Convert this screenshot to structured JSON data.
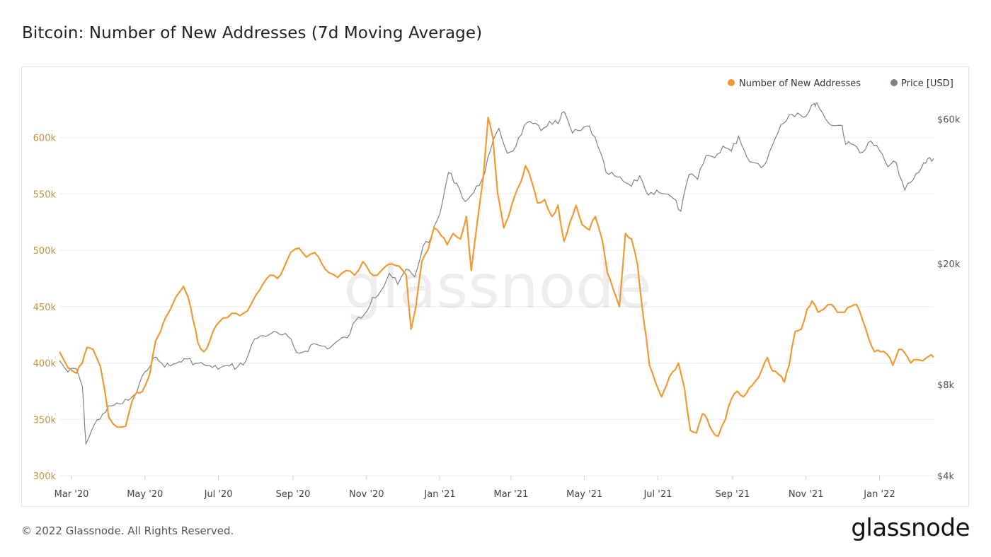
{
  "title": "Bitcoin: Number of New Addresses (7d Moving Average)",
  "footer": {
    "copyright": "© 2022 Glassnode. All Rights Reserved.",
    "logo": "glassnode"
  },
  "watermark": "glassnode",
  "colors": {
    "addresses": "#f09a36",
    "price": "#868079",
    "left_axis": "#c8913e",
    "grid": "#ececec"
  },
  "chart_data": {
    "type": "line",
    "title": "Bitcoin: Number of New Addresses (7d Moving Average)",
    "x_range": [
      "2020-02-20",
      "2022-02-15"
    ],
    "x_ticks": [
      {
        "date": "2020-03-01",
        "label": "Mar '20"
      },
      {
        "date": "2020-05-01",
        "label": "May '20"
      },
      {
        "date": "2020-07-01",
        "label": "Jul '20"
      },
      {
        "date": "2020-09-01",
        "label": "Sep '20"
      },
      {
        "date": "2020-11-01",
        "label": "Nov '20"
      },
      {
        "date": "2021-01-01",
        "label": "Jan '21"
      },
      {
        "date": "2021-03-01",
        "label": "Mar '21"
      },
      {
        "date": "2021-05-01",
        "label": "May '21"
      },
      {
        "date": "2021-07-01",
        "label": "Jul '21"
      },
      {
        "date": "2021-09-01",
        "label": "Sep '21"
      },
      {
        "date": "2021-11-01",
        "label": "Nov '21"
      },
      {
        "date": "2022-01-01",
        "label": "Jan '22"
      }
    ],
    "y_left": {
      "min": 300000,
      "max": 650000,
      "ticks": [
        {
          "value": 300000,
          "label": "300k"
        },
        {
          "value": 350000,
          "label": "350k"
        },
        {
          "value": 400000,
          "label": "400k"
        },
        {
          "value": 450000,
          "label": "450k"
        },
        {
          "value": 500000,
          "label": "500k"
        },
        {
          "value": 550000,
          "label": "550k"
        },
        {
          "value": 600000,
          "label": "600k"
        }
      ]
    },
    "y_right": {
      "scale": "log",
      "min": 4000,
      "max": 80000,
      "ticks": [
        {
          "value": 4000,
          "label": "$4k"
        },
        {
          "value": 8000,
          "label": "$8k"
        },
        {
          "value": 20000,
          "label": "$20k"
        },
        {
          "value": 60000,
          "label": "$60k"
        }
      ]
    },
    "grid": true,
    "legend_position": "top-right",
    "series": [
      {
        "name": "Number of New Addresses",
        "axis": "left",
        "points": [
          [
            "2020-02-20",
            410000
          ],
          [
            "2020-02-27",
            396000
          ],
          [
            "2020-03-05",
            391000
          ],
          [
            "2020-03-10",
            400000
          ],
          [
            "2020-03-14",
            414000
          ],
          [
            "2020-03-19",
            412000
          ],
          [
            "2020-03-25",
            397000
          ],
          [
            "2020-04-01",
            352000
          ],
          [
            "2020-04-08",
            343000
          ],
          [
            "2020-04-15",
            344000
          ],
          [
            "2020-04-20",
            365000
          ],
          [
            "2020-04-24",
            374000
          ],
          [
            "2020-04-29",
            375000
          ],
          [
            "2020-05-05",
            390000
          ],
          [
            "2020-05-10",
            420000
          ],
          [
            "2020-05-14",
            428000
          ],
          [
            "2020-05-18",
            440000
          ],
          [
            "2020-05-24",
            452000
          ],
          [
            "2020-05-29",
            462000
          ],
          [
            "2020-06-02",
            468000
          ],
          [
            "2020-06-06",
            458000
          ],
          [
            "2020-06-10",
            438000
          ],
          [
            "2020-06-14",
            418000
          ],
          [
            "2020-06-19",
            410000
          ],
          [
            "2020-06-24",
            420000
          ],
          [
            "2020-06-29",
            433000
          ],
          [
            "2020-07-05",
            440000
          ],
          [
            "2020-07-12",
            444000
          ],
          [
            "2020-07-19",
            442000
          ],
          [
            "2020-07-25",
            446000
          ],
          [
            "2020-08-01",
            460000
          ],
          [
            "2020-08-07",
            470000
          ],
          [
            "2020-08-13",
            478000
          ],
          [
            "2020-08-19",
            475000
          ],
          [
            "2020-08-25",
            486000
          ],
          [
            "2020-08-30",
            498000
          ],
          [
            "2020-09-06",
            502000
          ],
          [
            "2020-09-12",
            494000
          ],
          [
            "2020-09-19",
            498000
          ],
          [
            "2020-09-25",
            488000
          ],
          [
            "2020-10-01",
            480000
          ],
          [
            "2020-10-08",
            476000
          ],
          [
            "2020-10-15",
            482000
          ],
          [
            "2020-10-22",
            478000
          ],
          [
            "2020-10-29",
            490000
          ],
          [
            "2020-11-04",
            480000
          ],
          [
            "2020-11-10",
            478000
          ],
          [
            "2020-11-16",
            485000
          ],
          [
            "2020-11-22",
            488000
          ],
          [
            "2020-11-28",
            486000
          ],
          [
            "2020-12-04",
            478000
          ],
          [
            "2020-12-08",
            430000
          ],
          [
            "2020-12-12",
            450000
          ],
          [
            "2020-12-17",
            490000
          ],
          [
            "2020-12-22",
            500000
          ],
          [
            "2020-12-27",
            520000
          ],
          [
            "2021-01-02",
            513000
          ],
          [
            "2021-01-07",
            505000
          ],
          [
            "2021-01-12",
            515000
          ],
          [
            "2021-01-18",
            510000
          ],
          [
            "2021-01-23",
            530000
          ],
          [
            "2021-01-27",
            482000
          ],
          [
            "2021-02-01",
            525000
          ],
          [
            "2021-02-06",
            565000
          ],
          [
            "2021-02-10",
            618000
          ],
          [
            "2021-02-14",
            600000
          ],
          [
            "2021-02-18",
            550000
          ],
          [
            "2021-02-23",
            520000
          ],
          [
            "2021-02-27",
            530000
          ],
          [
            "2021-03-04",
            548000
          ],
          [
            "2021-03-09",
            560000
          ],
          [
            "2021-03-13",
            575000
          ],
          [
            "2021-03-18",
            562000
          ],
          [
            "2021-03-23",
            542000
          ],
          [
            "2021-03-29",
            545000
          ],
          [
            "2021-04-04",
            530000
          ],
          [
            "2021-04-09",
            540000
          ],
          [
            "2021-04-14",
            508000
          ],
          [
            "2021-04-19",
            525000
          ],
          [
            "2021-04-24",
            540000
          ],
          [
            "2021-04-29",
            523000
          ],
          [
            "2021-05-05",
            518000
          ],
          [
            "2021-05-10",
            530000
          ],
          [
            "2021-05-16",
            508000
          ],
          [
            "2021-05-20",
            480000
          ],
          [
            "2021-05-25",
            465000
          ],
          [
            "2021-05-30",
            450000
          ],
          [
            "2021-06-04",
            515000
          ],
          [
            "2021-06-09",
            510000
          ],
          [
            "2021-06-14",
            488000
          ],
          [
            "2021-06-19",
            440000
          ],
          [
            "2021-06-24",
            398000
          ],
          [
            "2021-06-29",
            383000
          ],
          [
            "2021-07-04",
            370000
          ],
          [
            "2021-07-08",
            380000
          ],
          [
            "2021-07-13",
            392000
          ],
          [
            "2021-07-18",
            400000
          ],
          [
            "2021-07-23",
            378000
          ],
          [
            "2021-07-28",
            340000
          ],
          [
            "2021-08-02",
            338000
          ],
          [
            "2021-08-07",
            355000
          ],
          [
            "2021-08-11",
            350000
          ],
          [
            "2021-08-15",
            340000
          ],
          [
            "2021-08-20",
            335000
          ],
          [
            "2021-08-26",
            350000
          ],
          [
            "2021-08-31",
            368000
          ],
          [
            "2021-09-05",
            375000
          ],
          [
            "2021-09-10",
            370000
          ],
          [
            "2021-09-15",
            378000
          ],
          [
            "2021-09-20",
            384000
          ],
          [
            "2021-09-25",
            393000
          ],
          [
            "2021-09-30",
            405000
          ],
          [
            "2021-10-04",
            393000
          ],
          [
            "2021-10-09",
            390000
          ],
          [
            "2021-10-14",
            383000
          ],
          [
            "2021-10-18",
            398000
          ],
          [
            "2021-10-23",
            428000
          ],
          [
            "2021-10-28",
            430000
          ],
          [
            "2021-11-02",
            448000
          ],
          [
            "2021-11-06",
            455000
          ],
          [
            "2021-11-11",
            445000
          ],
          [
            "2021-11-16",
            448000
          ],
          [
            "2021-11-22",
            452000
          ],
          [
            "2021-11-27",
            445000
          ],
          [
            "2021-12-03",
            445000
          ],
          [
            "2021-12-08",
            450000
          ],
          [
            "2021-12-13",
            452000
          ],
          [
            "2021-12-18",
            438000
          ],
          [
            "2021-12-23",
            422000
          ],
          [
            "2021-12-28",
            410000
          ],
          [
            "2022-01-02",
            410000
          ],
          [
            "2022-01-07",
            408000
          ],
          [
            "2022-01-12",
            398000
          ],
          [
            "2022-01-17",
            412000
          ],
          [
            "2022-01-22",
            409000
          ],
          [
            "2022-01-27",
            400000
          ],
          [
            "2022-02-01",
            403000
          ],
          [
            "2022-02-06",
            402000
          ],
          [
            "2022-02-11",
            406000
          ],
          [
            "2022-02-15",
            405000
          ]
        ]
      },
      {
        "name": "Price [USD]",
        "axis": "right",
        "points": [
          [
            "2020-02-20",
            9600
          ],
          [
            "2020-02-27",
            8800
          ],
          [
            "2020-03-05",
            9000
          ],
          [
            "2020-03-10",
            7900
          ],
          [
            "2020-03-13",
            5100
          ],
          [
            "2020-03-20",
            5900
          ],
          [
            "2020-03-27",
            6400
          ],
          [
            "2020-04-03",
            6800
          ],
          [
            "2020-04-10",
            6900
          ],
          [
            "2020-04-17",
            7100
          ],
          [
            "2020-04-24",
            7500
          ],
          [
            "2020-05-01",
            8800
          ],
          [
            "2020-05-08",
            9800
          ],
          [
            "2020-05-15",
            9400
          ],
          [
            "2020-05-22",
            9200
          ],
          [
            "2020-05-29",
            9500
          ],
          [
            "2020-06-05",
            9700
          ],
          [
            "2020-06-12",
            9400
          ],
          [
            "2020-06-19",
            9300
          ],
          [
            "2020-06-26",
            9100
          ],
          [
            "2020-07-03",
            9100
          ],
          [
            "2020-07-10",
            9200
          ],
          [
            "2020-07-17",
            9150
          ],
          [
            "2020-07-24",
            9600
          ],
          [
            "2020-07-31",
            11300
          ],
          [
            "2020-08-07",
            11600
          ],
          [
            "2020-08-14",
            11800
          ],
          [
            "2020-08-21",
            11700
          ],
          [
            "2020-08-28",
            11500
          ],
          [
            "2020-09-04",
            10200
          ],
          [
            "2020-09-11",
            10300
          ],
          [
            "2020-09-18",
            10900
          ],
          [
            "2020-09-25",
            10700
          ],
          [
            "2020-10-02",
            10600
          ],
          [
            "2020-10-09",
            11200
          ],
          [
            "2020-10-16",
            11400
          ],
          [
            "2020-10-23",
            13000
          ],
          [
            "2020-10-30",
            13600
          ],
          [
            "2020-11-06",
            15500
          ],
          [
            "2020-11-13",
            16300
          ],
          [
            "2020-11-20",
            18600
          ],
          [
            "2020-11-27",
            17100
          ],
          [
            "2020-12-04",
            19200
          ],
          [
            "2020-12-11",
            18100
          ],
          [
            "2020-12-18",
            22900
          ],
          [
            "2020-12-25",
            24600
          ],
          [
            "2021-01-01",
            29300
          ],
          [
            "2021-01-08",
            40000
          ],
          [
            "2021-01-15",
            36800
          ],
          [
            "2021-01-22",
            32100
          ],
          [
            "2021-01-29",
            34300
          ],
          [
            "2021-02-05",
            38000
          ],
          [
            "2021-02-12",
            47500
          ],
          [
            "2021-02-19",
            55900
          ],
          [
            "2021-02-26",
            46300
          ],
          [
            "2021-03-05",
            48800
          ],
          [
            "2021-03-12",
            57200
          ],
          [
            "2021-03-19",
            58000
          ],
          [
            "2021-03-26",
            55000
          ],
          [
            "2021-04-02",
            59000
          ],
          [
            "2021-04-09",
            58000
          ],
          [
            "2021-04-14",
            63500
          ],
          [
            "2021-04-21",
            54000
          ],
          [
            "2021-04-28",
            55000
          ],
          [
            "2021-05-05",
            57000
          ],
          [
            "2021-05-12",
            49000
          ],
          [
            "2021-05-19",
            40000
          ],
          [
            "2021-05-26",
            39000
          ],
          [
            "2021-06-02",
            37500
          ],
          [
            "2021-06-09",
            36000
          ],
          [
            "2021-06-16",
            39000
          ],
          [
            "2021-06-23",
            33700
          ],
          [
            "2021-06-30",
            35000
          ],
          [
            "2021-07-07",
            34000
          ],
          [
            "2021-07-14",
            32800
          ],
          [
            "2021-07-20",
            29800
          ],
          [
            "2021-07-27",
            39500
          ],
          [
            "2021-08-03",
            38000
          ],
          [
            "2021-08-10",
            45600
          ],
          [
            "2021-08-17",
            44700
          ],
          [
            "2021-08-24",
            48900
          ],
          [
            "2021-08-31",
            47100
          ],
          [
            "2021-09-06",
            52700
          ],
          [
            "2021-09-13",
            44900
          ],
          [
            "2021-09-20",
            43000
          ],
          [
            "2021-09-27",
            42200
          ],
          [
            "2021-10-04",
            49100
          ],
          [
            "2021-10-11",
            57500
          ],
          [
            "2021-10-18",
            62000
          ],
          [
            "2021-10-25",
            62900
          ],
          [
            "2021-11-01",
            61300
          ],
          [
            "2021-11-08",
            67500
          ],
          [
            "2021-11-10",
            68000
          ],
          [
            "2021-11-17",
            60300
          ],
          [
            "2021-11-24",
            57100
          ],
          [
            "2021-12-01",
            57200
          ],
          [
            "2021-12-04",
            49500
          ],
          [
            "2021-12-11",
            49300
          ],
          [
            "2021-12-18",
            46700
          ],
          [
            "2021-12-25",
            50800
          ],
          [
            "2022-01-01",
            47300
          ],
          [
            "2022-01-08",
            41800
          ],
          [
            "2022-01-15",
            43100
          ],
          [
            "2022-01-22",
            35000
          ],
          [
            "2022-01-29",
            37900
          ],
          [
            "2022-02-05",
            41600
          ],
          [
            "2022-02-10",
            44400
          ],
          [
            "2022-02-15",
            44500
          ]
        ]
      }
    ]
  }
}
